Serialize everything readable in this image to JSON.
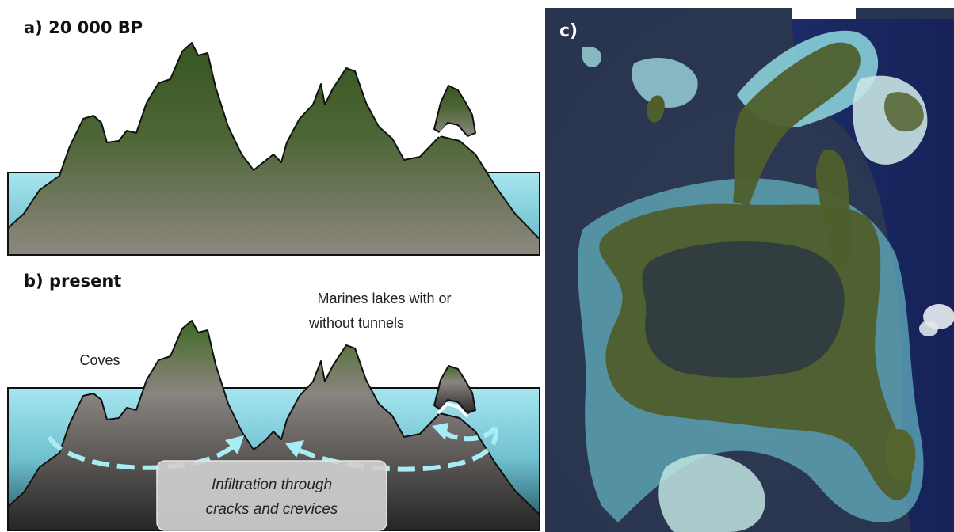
{
  "panels": {
    "a": {
      "label": "a) 20 000 BP"
    },
    "b": {
      "label": "b) present",
      "annotations": {
        "coves": "Coves",
        "marine_lakes_line1": "Marines lakes with or",
        "marine_lakes_line2": "without tunnels",
        "infiltration_line1": "Infiltration through",
        "infiltration_line2": "cracks and crevices"
      }
    },
    "c": {
      "label": "c)"
    }
  },
  "colors": {
    "sea": "#8fd6e3",
    "land_top": "#3a5a25",
    "land_bottom": "#8a8580",
    "rock_dark": "#3a3a3a",
    "arrow": "#a8ecf5",
    "satellite_ocean": "#2c3a55",
    "reef_light": "#8fd9e0",
    "island_green": "#4a5a2a"
  }
}
